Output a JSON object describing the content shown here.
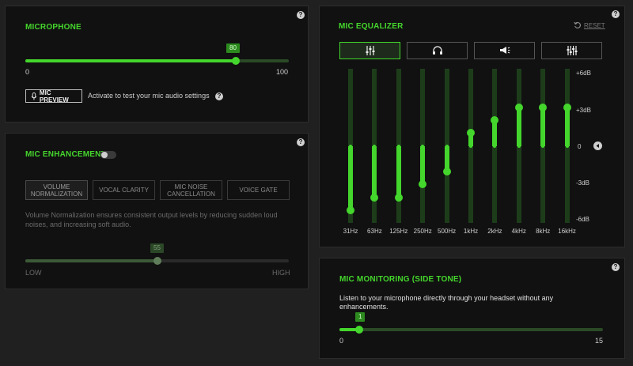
{
  "help_glyph": "?",
  "microphone": {
    "title": "MICROPHONE",
    "value": 80,
    "min": 0,
    "max": 100,
    "value_label": "80",
    "min_label": "0",
    "max_label": "100",
    "preview_button": "MIC PREVIEW",
    "preview_text": "Activate to test your mic audio settings"
  },
  "enhancement": {
    "title": "MIC ENHANCEMENT",
    "enabled": false,
    "buttons": [
      "VOLUME NORMALIZATION",
      "VOCAL CLARITY",
      "MIC NOISE CANCELLATION",
      "VOICE GATE"
    ],
    "description": "Volume Normalization ensures consistent output levels by reducing sudden loud noises, and increasing soft audio.",
    "slider_value_label": "55",
    "slider_fraction": 0.5,
    "low_label": "LOW",
    "high_label": "HIGH"
  },
  "equalizer": {
    "title": "MIC EQUALIZER",
    "reset_label": "RESET",
    "tabs": [
      "sliders-icon",
      "headset-icon",
      "megaphone-icon",
      "equalizer-icon"
    ],
    "selected_tab": 0,
    "db_labels": [
      "+6dB",
      "+3dB",
      "0",
      "-3dB",
      "-6dB"
    ],
    "range_db": [
      -6,
      6
    ],
    "bands": [
      {
        "label": "31Hz",
        "value": -5
      },
      {
        "label": "63Hz",
        "value": -4
      },
      {
        "label": "125Hz",
        "value": -4
      },
      {
        "label": "250Hz",
        "value": -3
      },
      {
        "label": "500Hz",
        "value": -2
      },
      {
        "label": "1kHz",
        "value": 1
      },
      {
        "label": "2kHz",
        "value": 2
      },
      {
        "label": "4kHz",
        "value": 3
      },
      {
        "label": "8kHz",
        "value": 3
      },
      {
        "label": "16kHz",
        "value": 3
      }
    ]
  },
  "monitoring": {
    "title": "MIC MONITORING (SIDE TONE)",
    "description": "Listen to your microphone directly through your headset without any enhancements.",
    "value": 1,
    "min": 0,
    "max": 15,
    "value_label": "1",
    "min_label": "0",
    "max_label": "15"
  },
  "colors": {
    "accent": "#44d62c",
    "panel": "#111111",
    "background": "#202020"
  }
}
